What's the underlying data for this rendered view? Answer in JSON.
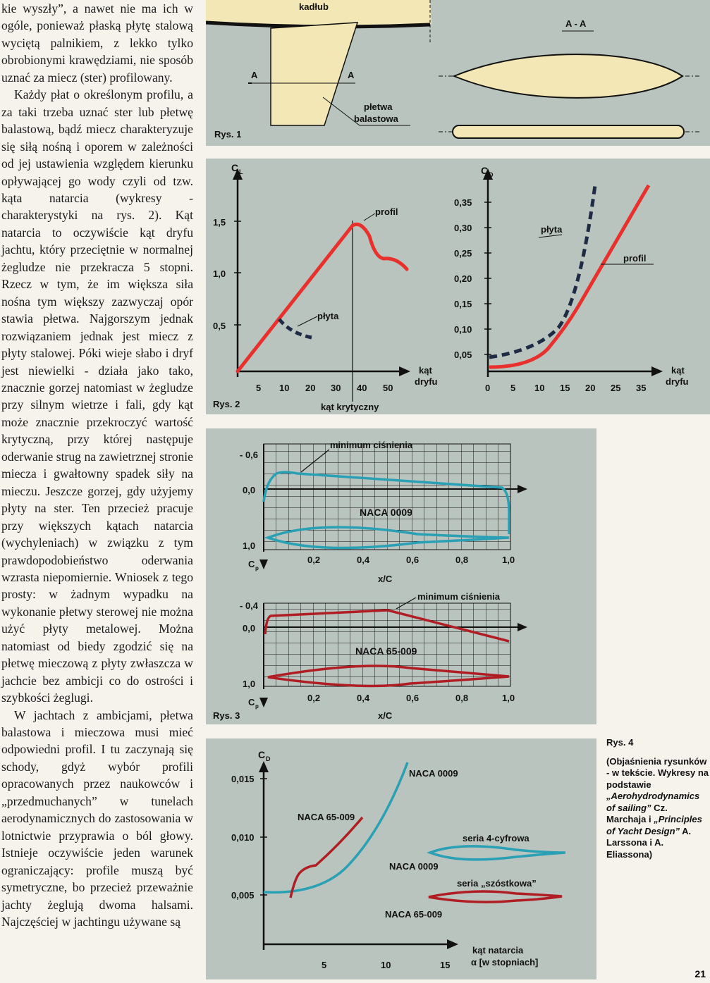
{
  "body_text": {
    "p1": "kie wyszły”, a nawet nie ma ich w ogóle, ponieważ płaską płytę stalową wyciętą palnikiem, z lekko tylko obrobionymi krawędziami, nie sposób uznać za miecz (ster) profilowany.",
    "p2": "Każdy płat o określonym profilu, a za taki trzeba uznać ster lub płetwę balastową, bądź miecz charakteryzuje się siłą nośną i oporem w zależności od jej ustawienia względem kierunku opływającej go wody czyli od tzw. kąta natarcia (wykresy - charakterystyki na rys. 2). Kąt natarcia to oczywiście kąt dryfu jachtu, który przeciętnie w normalnej żegludze nie przekracza 5 stopni. Rzecz w tym, że im większa siła nośna tym większy zazwyczaj opór stawia płetwa. Najgorszym jednak rozwiązaniem jednak jest miecz z płyty stalowej. Póki wieje słabo i dryf jest niewielki - działa jako tako, znacznie gorzej natomiast w żegludze przy silnym wietrze i fali, gdy kąt może znacznie przekroczyć wartość krytyczną, przy której następuje oderwanie strug na zawietrznej stronie miecza i gwałtowny spadek siły na mieczu. Jeszcze gorzej, gdy użyjemy płyty na ster. Ten przecież pracuje przy większych kątach natarcia (wychyleniach) w związku z tym prawdopodobieństwo oderwania wzrasta niepomiernie. Wniosek z tego prosty: w żadnym wypadku na wykonanie płetwy sterowej nie można użyć płyty metalowej. Można natomiast od biedy zgodzić się na płetwę mieczową z płyty zwłaszcza w jachcie bez ambicji co do ostrości i szybkości żeglugi.",
    "p3": "W jachtach z ambicjami, płetwa balastowa i mieczowa musi mieć odpowiedni profil. I tu zaczynają się schody, gdyż wybór profili opracowanych przez naukowców i „przedmuchanych” w tunelach aerodynamicznych do zastosowania w lotnictwie przyprawia o ból głowy. Istnieje oczywiście jeden warunek ograniczający: profile muszą być symetryczne, bo przecież przeważnie jachty żeglują dwoma halsami. Najczęściej w jachtingu używane są"
  },
  "fig1": {
    "label": "Rys. 1",
    "hull": "kadłub",
    "section_a_left": "A",
    "section_a_right": "A",
    "fin1": "płetwa",
    "fin2": "balastowa",
    "section_title": "A - A"
  },
  "fig2": {
    "label": "Rys. 2",
    "left_ylabel": "C",
    "left_ylabel_sub": "L",
    "left_yticks": [
      "1,5",
      "1,0",
      "0,5"
    ],
    "left_xticks": [
      "5",
      "10",
      "20",
      "30",
      "40",
      "50"
    ],
    "left_xlabel1": "kąt",
    "left_xlabel2": "dryfu",
    "critical": "kąt krytyczny",
    "profil_left": "profil",
    "plyta_left": "płyta",
    "right_ylabel": "C",
    "right_ylabel_sub": "D",
    "right_yticks": [
      "0,35",
      "0,30",
      "0,25",
      "0,20",
      "0,15",
      "0,10",
      "0,05"
    ],
    "right_xticks": [
      "0",
      "5",
      "10",
      "15",
      "20",
      "25",
      "35"
    ],
    "right_xlabel1": "kąt",
    "right_xlabel2": "dryfu",
    "plyta_right": "płyta",
    "profil_right": "profil"
  },
  "fig3": {
    "label": "Rys. 3",
    "top_min": "minimum ciśnienia",
    "top_yticks": [
      "- 0,6",
      "0,0",
      "1,0"
    ],
    "top_profile": "NACA 0009",
    "top_xticks": [
      "0,2",
      "0,4",
      "0,6",
      "0,8",
      "1,0"
    ],
    "cp": "C",
    "cp_sub": "p",
    "xlabel": "x/C",
    "bot_min": "minimum ciśnienia",
    "bot_yticks": [
      "- 0,4",
      "0,0",
      "1,0"
    ],
    "bot_profile": "NACA 65-009",
    "bot_xticks": [
      "0,2",
      "0,4",
      "0,6",
      "0,8",
      "1,0"
    ]
  },
  "fig4": {
    "ylabel": "C",
    "ylabel_sub": "D",
    "yticks": [
      "0,015",
      "0,010",
      "0,005"
    ],
    "xticks": [
      "5",
      "10",
      "15"
    ],
    "xlabel1": "kąt natarcia",
    "xlabel2": "α [w stopniach]",
    "curve_a": "NACA 0009",
    "curve_b": "NACA 65-009",
    "series4": "seria 4-cyfrowa",
    "series4_profile": "NACA 0009",
    "series6": "seria „szóstkowa”",
    "series6_profile": "NACA 65-009"
  },
  "caption": {
    "title": "Rys. 4",
    "text1": "(Objaśnienia rysunków - w tekście. Wykresy na podstawie ",
    "italic1": "„Aerohydrodynamics of sailing”",
    "text2": " Cz. Marchaja i ",
    "italic2": "„Principles of Yacht Design”",
    "text3": " A. Larssona i A. Eliassona)"
  },
  "page_corner": "21"
}
